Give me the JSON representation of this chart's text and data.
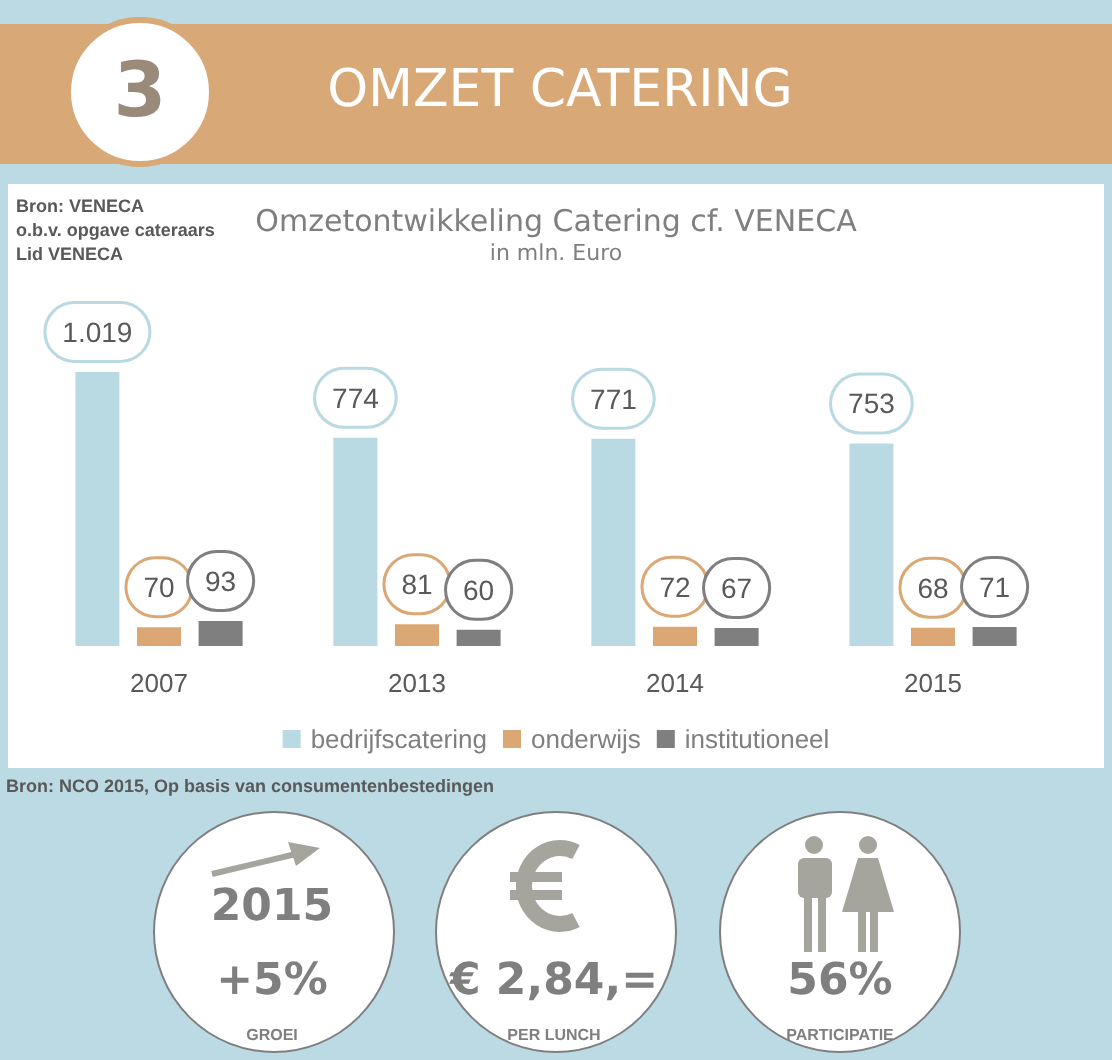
{
  "chart_data": {
    "type": "bar",
    "title": "Omzetontwikkeling Catering cf. VENECA",
    "subtitle": "in mln. Euro",
    "categories": [
      "2007",
      "2013",
      "2014",
      "2015"
    ],
    "series": [
      {
        "name": "bedrijfscatering",
        "color": "#b9d9e3",
        "values": [
          1019,
          774,
          771,
          753
        ],
        "value_labels": [
          "1.019",
          "774",
          "771",
          "753"
        ]
      },
      {
        "name": "onderwijs",
        "color": "#dba875",
        "values": [
          70,
          81,
          72,
          68
        ],
        "value_labels": [
          "70",
          "81",
          "72",
          "68"
        ]
      },
      {
        "name": "institutioneel",
        "color": "#7f7f7f",
        "values": [
          93,
          60,
          67,
          71
        ],
        "value_labels": [
          "93",
          "60",
          "67",
          "71"
        ]
      }
    ],
    "legend": "bottom",
    "grid": false,
    "annotations": [
      "3",
      "OMZET CATERING",
      "Bron: VENECA",
      "o.b.v. opgave cateraars",
      "Lid VENECA",
      "Bron: NCO 2015, Op basis van consumentenbestedingen",
      "2015",
      "+5%",
      "GROEI",
      "€ 2,84,=",
      "PER LUNCH",
      "56%",
      "PARTICIPATIE"
    ]
  }
}
